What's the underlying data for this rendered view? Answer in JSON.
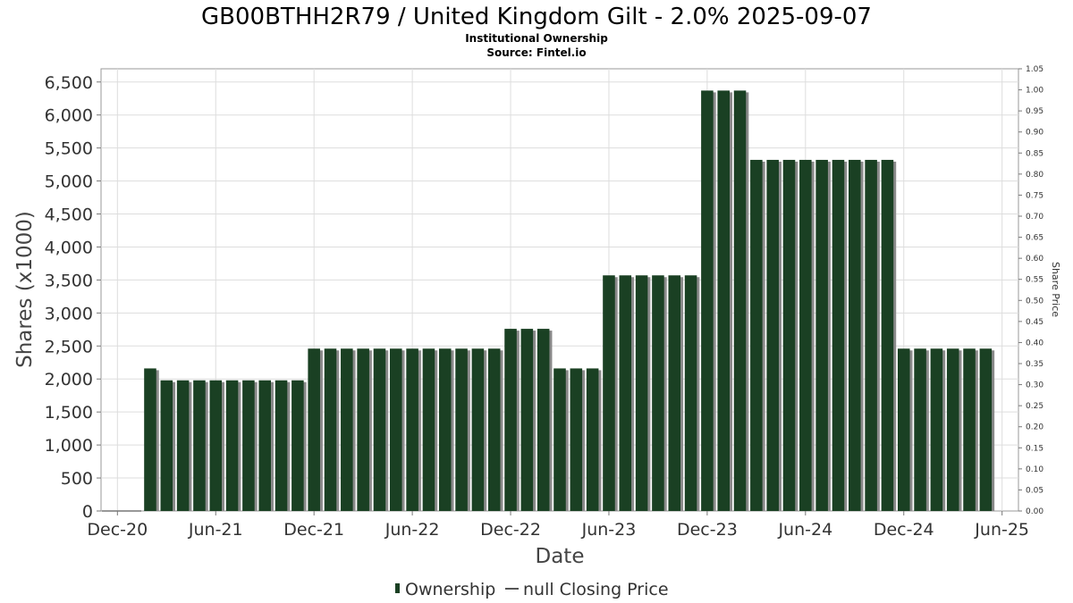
{
  "chart_data": {
    "type": "bar",
    "title": "GB00BTHH2R79 / United Kingdom Gilt - 2.0% 2025-09-07",
    "subtitle_lines": [
      "Institutional Ownership",
      "Source: Fintel.io"
    ],
    "xlabel": "Date",
    "ylabel": "Shares (x1000)",
    "y2label": "Share Price",
    "ylim": [
      0,
      6700
    ],
    "y2lim": [
      0,
      1.05
    ],
    "yticks": [
      "0",
      "500",
      "1,000",
      "1,500",
      "2,000",
      "2,500",
      "3,000",
      "3,500",
      "4,000",
      "4,500",
      "5,000",
      "5,500",
      "6,000",
      "6,500"
    ],
    "ytick_values": [
      0,
      500,
      1000,
      1500,
      2000,
      2500,
      3000,
      3500,
      4000,
      4500,
      5000,
      5500,
      6000,
      6500
    ],
    "y2ticks": [
      "0.00",
      "0.05",
      "0.10",
      "0.15",
      "0.20",
      "0.25",
      "0.30",
      "0.35",
      "0.40",
      "0.45",
      "0.50",
      "0.55",
      "0.60",
      "0.65",
      "0.70",
      "0.75",
      "0.80",
      "0.85",
      "0.90",
      "0.95",
      "1.00",
      "1.05"
    ],
    "y2tick_values": [
      0,
      0.05,
      0.1,
      0.15,
      0.2,
      0.25,
      0.3,
      0.35,
      0.4,
      0.45,
      0.5,
      0.55,
      0.6,
      0.65,
      0.7,
      0.75,
      0.8,
      0.85,
      0.9,
      0.95,
      1.0,
      1.05
    ],
    "xticks": [
      "Dec-20",
      "Jun-21",
      "Dec-21",
      "Jun-22",
      "Dec-22",
      "Jun-23",
      "Dec-23",
      "Jun-24",
      "Dec-24",
      "Jun-25"
    ],
    "x_domain": [
      "2020-11",
      "2025-07"
    ],
    "grid": true,
    "legend_position": "bottom-center",
    "colors": {
      "bar": "#1a4023",
      "bar_shadow": "#8a8a8a",
      "price_line": "#555555",
      "baseline": "#777777"
    },
    "series": [
      {
        "name": "Ownership",
        "kind": "bar",
        "x": [
          "2021-02",
          "2021-03",
          "2021-04",
          "2021-05",
          "2021-06",
          "2021-07",
          "2021-08",
          "2021-09",
          "2021-10",
          "2021-11",
          "2021-12",
          "2022-01",
          "2022-02",
          "2022-03",
          "2022-04",
          "2022-05",
          "2022-06",
          "2022-07",
          "2022-08",
          "2022-09",
          "2022-10",
          "2022-11",
          "2022-12",
          "2023-01",
          "2023-02",
          "2023-03",
          "2023-04",
          "2023-05",
          "2023-06",
          "2023-07",
          "2023-08",
          "2023-09",
          "2023-10",
          "2023-11",
          "2023-12",
          "2024-01",
          "2024-02",
          "2024-03",
          "2024-04",
          "2024-05",
          "2024-06",
          "2024-07",
          "2024-08",
          "2024-09",
          "2024-10",
          "2024-11",
          "2024-12",
          "2025-01",
          "2025-02",
          "2025-03",
          "2025-04",
          "2025-05"
        ],
        "values": [
          2160,
          1980,
          1980,
          1980,
          1980,
          1980,
          1980,
          1980,
          1980,
          1980,
          2460,
          2460,
          2460,
          2460,
          2460,
          2460,
          2460,
          2460,
          2460,
          2460,
          2460,
          2460,
          2760,
          2760,
          2760,
          2160,
          2160,
          2160,
          3570,
          3570,
          3570,
          3570,
          3570,
          3570,
          6370,
          6370,
          6370,
          5320,
          5320,
          5320,
          5320,
          5320,
          5320,
          5320,
          5320,
          5320,
          2460,
          2460,
          2460,
          2460,
          2460,
          2460
        ]
      },
      {
        "name": "null Closing Price",
        "kind": "line",
        "x": [],
        "values": []
      }
    ]
  }
}
